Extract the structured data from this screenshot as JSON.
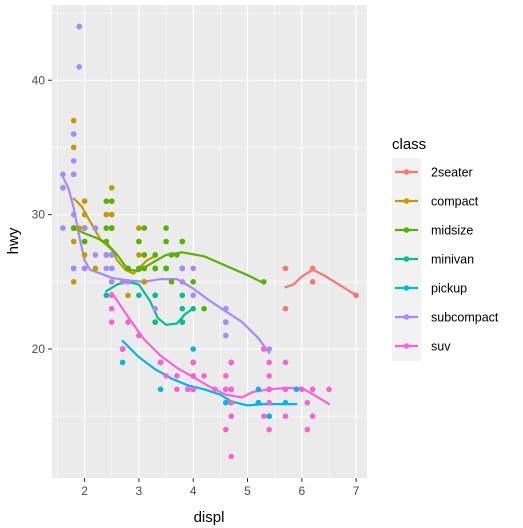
{
  "chart_data": {
    "type": "scatter",
    "xlabel": "displ",
    "ylabel": "hwy",
    "xlim": [
      1.4,
      7.2
    ],
    "ylim": [
      10.4,
      45.6
    ],
    "x_ticks": [
      2,
      3,
      4,
      5,
      6,
      7
    ],
    "y_ticks": [
      20,
      30,
      40
    ],
    "grid": true,
    "smooth": "loess",
    "legend": {
      "title": "class",
      "position": "right"
    },
    "series": [
      {
        "name": "2seater",
        "color": "#F8766D",
        "points": [
          [
            5.7,
            26
          ],
          [
            5.7,
            23
          ],
          [
            6.2,
            26
          ],
          [
            6.2,
            25
          ],
          [
            7.0,
            24
          ]
        ],
        "smooth": [
          [
            5.7,
            24.6
          ],
          [
            5.85,
            24.8
          ],
          [
            6.0,
            25.4
          ],
          [
            6.2,
            25.9
          ],
          [
            6.4,
            25.5
          ],
          [
            6.6,
            25.0
          ],
          [
            6.8,
            24.5
          ],
          [
            7.0,
            24.0
          ]
        ]
      },
      {
        "name": "compact",
        "color": "#C49A00",
        "points": [
          [
            1.8,
            29
          ],
          [
            1.8,
            29
          ],
          [
            2.0,
            31
          ],
          [
            2.0,
            30
          ],
          [
            2.8,
            26
          ],
          [
            2.8,
            26
          ],
          [
            3.1,
            27
          ],
          [
            1.8,
            26
          ],
          [
            1.8,
            25
          ],
          [
            2.0,
            28
          ],
          [
            2.0,
            27
          ],
          [
            2.8,
            25
          ],
          [
            2.8,
            25
          ],
          [
            3.1,
            25
          ],
          [
            3.1,
            25
          ],
          [
            2.2,
            29
          ],
          [
            2.2,
            26
          ],
          [
            2.4,
            27
          ],
          [
            2.4,
            30
          ],
          [
            3.0,
            26
          ],
          [
            3.0,
            29
          ],
          [
            3.3,
            26
          ],
          [
            1.9,
            44
          ],
          [
            2.0,
            29
          ],
          [
            2.0,
            26
          ],
          [
            2.5,
            32
          ],
          [
            2.5,
            31
          ],
          [
            1.8,
            37
          ],
          [
            1.8,
            35
          ],
          [
            1.8,
            33
          ],
          [
            1.8,
            28
          ],
          [
            1.9,
            29
          ],
          [
            2.0,
            29
          ],
          [
            2.0,
            28
          ],
          [
            2.5,
            29
          ],
          [
            2.8,
            24
          ],
          [
            2.5,
            30
          ],
          [
            2.0,
            31
          ],
          [
            3.0,
            28
          ],
          [
            3.0,
            27
          ]
        ],
        "smooth": [
          [
            1.8,
            31.2
          ],
          [
            1.95,
            30.6
          ],
          [
            2.1,
            29.5
          ],
          [
            2.3,
            28.1
          ],
          [
            2.5,
            27.4
          ],
          [
            2.6,
            26.6
          ],
          [
            2.75,
            25.9
          ],
          [
            2.9,
            25.6
          ],
          [
            3.0,
            26.0
          ],
          [
            3.15,
            26.6
          ],
          [
            3.3,
            26.9
          ]
        ]
      },
      {
        "name": "midsize",
        "color": "#53B400",
        "points": [
          [
            2.4,
            29
          ],
          [
            2.4,
            27
          ],
          [
            3.1,
            26
          ],
          [
            3.5,
            26
          ],
          [
            3.6,
            25
          ],
          [
            2.4,
            31
          ],
          [
            3.0,
            26
          ],
          [
            3.3,
            26
          ],
          [
            3.3,
            27
          ],
          [
            3.3,
            26
          ],
          [
            3.8,
            26
          ],
          [
            3.8,
            28
          ],
          [
            4.0,
            25
          ],
          [
            2.8,
            26
          ],
          [
            3.1,
            27
          ],
          [
            4.2,
            23
          ],
          [
            5.3,
            25
          ],
          [
            1.8,
            29
          ],
          [
            1.8,
            29
          ],
          [
            2.0,
            28
          ],
          [
            2.0,
            29
          ],
          [
            2.5,
            29
          ],
          [
            2.5,
            29
          ],
          [
            3.6,
            27
          ],
          [
            3.5,
            26
          ],
          [
            3.8,
            28
          ],
          [
            3.7,
            27
          ],
          [
            2.4,
            28
          ],
          [
            2.5,
            31
          ],
          [
            3.0,
            28
          ],
          [
            3.5,
            29
          ],
          [
            3.5,
            28
          ],
          [
            3.5,
            26
          ],
          [
            3.8,
            26
          ],
          [
            3.1,
            26
          ],
          [
            3.1,
            29
          ],
          [
            2.5,
            26
          ],
          [
            2.5,
            27
          ],
          [
            3.5,
            26
          ],
          [
            3.3,
            26
          ],
          [
            3.3,
            27
          ]
        ],
        "smooth": [
          [
            1.8,
            29.0
          ],
          [
            2.0,
            28.6
          ],
          [
            2.2,
            28.3
          ],
          [
            2.4,
            27.9
          ],
          [
            2.6,
            27.0
          ],
          [
            2.8,
            25.9
          ],
          [
            3.0,
            25.8
          ],
          [
            3.2,
            26.3
          ],
          [
            3.5,
            27.0
          ],
          [
            3.8,
            27.2
          ],
          [
            4.2,
            26.9
          ],
          [
            4.6,
            26.2
          ],
          [
            5.0,
            25.5
          ],
          [
            5.3,
            24.9
          ]
        ]
      },
      {
        "name": "minivan",
        "color": "#00C094",
        "points": [
          [
            2.4,
            24
          ],
          [
            3.0,
            24
          ],
          [
            3.3,
            22
          ],
          [
            3.3,
            22
          ],
          [
            3.3,
            24
          ],
          [
            3.3,
            24
          ],
          [
            3.8,
            24
          ],
          [
            3.8,
            22
          ],
          [
            3.8,
            22
          ],
          [
            3.8,
            23
          ],
          [
            4.0,
            23
          ]
        ],
        "smooth": [
          [
            2.4,
            24.3
          ],
          [
            2.6,
            24.8
          ],
          [
            2.8,
            25.0
          ],
          [
            3.0,
            24.8
          ],
          [
            3.2,
            23.6
          ],
          [
            3.35,
            22.3
          ],
          [
            3.5,
            21.8
          ],
          [
            3.7,
            21.9
          ],
          [
            3.85,
            22.6
          ],
          [
            4.0,
            23.0
          ]
        ]
      },
      {
        "name": "pickup",
        "color": "#00B6EB",
        "points": [
          [
            2.7,
            20
          ],
          [
            2.7,
            20
          ],
          [
            3.4,
            17
          ],
          [
            3.4,
            19
          ],
          [
            3.9,
            17
          ],
          [
            3.9,
            17
          ],
          [
            4.7,
            15
          ],
          [
            4.7,
            17
          ],
          [
            4.7,
            17
          ],
          [
            4.7,
            16
          ],
          [
            5.2,
            16
          ],
          [
            5.2,
            16
          ],
          [
            5.7,
            17
          ],
          [
            5.9,
            17
          ],
          [
            4.7,
            17
          ],
          [
            4.7,
            19
          ],
          [
            5.2,
            17
          ],
          [
            5.7,
            16
          ],
          [
            5.4,
            15
          ],
          [
            5.4,
            17
          ],
          [
            5.4,
            17
          ],
          [
            5.4,
            15
          ],
          [
            2.7,
            19
          ],
          [
            2.7,
            20
          ],
          [
            3.4,
            19
          ],
          [
            3.4,
            19
          ],
          [
            4.0,
            18
          ],
          [
            4.0,
            20
          ],
          [
            4.0,
            17
          ],
          [
            4.6,
            17
          ],
          [
            4.0,
            19
          ],
          [
            4.0,
            17
          ],
          [
            4.0,
            17
          ],
          [
            4.6,
            16
          ]
        ],
        "smooth": [
          [
            2.7,
            20.6
          ],
          [
            3.0,
            19.4
          ],
          [
            3.3,
            18.5
          ],
          [
            3.6,
            17.8
          ],
          [
            3.9,
            17.3
          ],
          [
            4.2,
            17.0
          ],
          [
            4.5,
            16.6
          ],
          [
            4.7,
            16.1
          ],
          [
            5.0,
            15.8
          ],
          [
            5.3,
            15.9
          ],
          [
            5.6,
            15.9
          ],
          [
            5.9,
            15.9
          ]
        ]
      },
      {
        "name": "subcompact",
        "color": "#A58AFF",
        "points": [
          [
            3.8,
            26
          ],
          [
            3.8,
            25
          ],
          [
            4.0,
            26
          ],
          [
            4.0,
            24
          ],
          [
            4.6,
            21
          ],
          [
            4.6,
            22
          ],
          [
            4.6,
            23
          ],
          [
            4.6,
            22
          ],
          [
            5.4,
            20
          ],
          [
            1.6,
            33
          ],
          [
            1.6,
            32
          ],
          [
            1.6,
            32
          ],
          [
            1.6,
            29
          ],
          [
            1.6,
            32
          ],
          [
            1.8,
            34
          ],
          [
            1.8,
            36
          ],
          [
            1.8,
            36
          ],
          [
            2.0,
            29
          ],
          [
            2.4,
            26
          ],
          [
            2.4,
            27
          ],
          [
            2.5,
            26
          ],
          [
            2.5,
            25
          ],
          [
            1.9,
            41
          ],
          [
            1.9,
            44
          ],
          [
            2.0,
            29
          ],
          [
            2.0,
            26
          ],
          [
            2.2,
            27
          ],
          [
            2.2,
            29
          ],
          [
            2.5,
            25
          ],
          [
            2.5,
            24
          ],
          [
            2.5,
            27
          ],
          [
            3.3,
            23
          ],
          [
            2.0,
            26
          ],
          [
            2.0,
            29
          ],
          [
            2.7,
            25
          ],
          [
            2.7,
            25
          ],
          [
            2.0,
            26
          ],
          [
            2.8,
            25
          ],
          [
            1.8,
            26
          ],
          [
            1.8,
            26
          ],
          [
            1.8,
            33
          ],
          [
            1.8,
            30
          ],
          [
            2.5,
            27
          ]
        ],
        "smooth": [
          [
            1.6,
            32.8
          ],
          [
            1.7,
            32.0
          ],
          [
            1.8,
            30.5
          ],
          [
            1.9,
            28.4
          ],
          [
            2.0,
            26.6
          ],
          [
            2.1,
            25.9
          ],
          [
            2.3,
            25.6
          ],
          [
            2.5,
            25.3
          ],
          [
            2.8,
            25.1
          ],
          [
            3.1,
            25.0
          ],
          [
            3.4,
            25.2
          ],
          [
            3.7,
            25.2
          ],
          [
            4.0,
            24.5
          ],
          [
            4.3,
            23.6
          ],
          [
            4.6,
            22.8
          ],
          [
            4.9,
            22.0
          ],
          [
            5.2,
            20.8
          ],
          [
            5.4,
            19.7
          ]
        ]
      },
      {
        "name": "suv",
        "color": "#FB61D7",
        "points": [
          [
            5.3,
            20
          ],
          [
            5.3,
            15
          ],
          [
            5.3,
            20
          ],
          [
            5.7,
            17
          ],
          [
            6.0,
            17
          ],
          [
            5.7,
            17
          ],
          [
            5.7,
            17
          ],
          [
            6.2,
            17
          ],
          [
            6.2,
            15
          ],
          [
            6.5,
            17
          ],
          [
            4.7,
            12
          ],
          [
            4.7,
            17
          ],
          [
            4.7,
            17
          ],
          [
            4.7,
            17
          ],
          [
            5.7,
            19
          ],
          [
            6.1,
            14
          ],
          [
            4.0,
            17
          ],
          [
            4.2,
            18
          ],
          [
            4.4,
            17
          ],
          [
            4.6,
            14
          ],
          [
            5.4,
            17
          ],
          [
            5.4,
            18
          ],
          [
            5.4,
            14
          ],
          [
            4.0,
            19
          ],
          [
            4.6,
            18
          ],
          [
            5.4,
            19
          ],
          [
            5.4,
            17
          ],
          [
            2.5,
            23
          ],
          [
            2.5,
            24
          ],
          [
            2.5,
            22
          ],
          [
            2.8,
            22
          ],
          [
            2.7,
            20
          ],
          [
            3.4,
            19
          ],
          [
            3.5,
            18
          ],
          [
            4.0,
            19
          ],
          [
            4.0,
            18
          ],
          [
            4.0,
            19
          ],
          [
            4.0,
            17
          ],
          [
            4.6,
            17
          ],
          [
            4.6,
            17
          ],
          [
            4.7,
            19
          ],
          [
            4.7,
            19
          ],
          [
            5.7,
            15
          ],
          [
            5.4,
            16
          ],
          [
            5.4,
            17
          ],
          [
            3.0,
            21
          ],
          [
            3.7,
            18
          ],
          [
            3.7,
            17
          ],
          [
            3.9,
            17
          ],
          [
            4.7,
            16
          ],
          [
            4.7,
            15
          ],
          [
            6.1,
            16
          ]
        ],
        "smooth": [
          [
            2.5,
            24.2
          ],
          [
            2.8,
            22.4
          ],
          [
            3.1,
            20.7
          ],
          [
            3.4,
            19.5
          ],
          [
            3.7,
            18.6
          ],
          [
            4.0,
            17.9
          ],
          [
            4.3,
            17.2
          ],
          [
            4.6,
            16.6
          ],
          [
            4.9,
            16.4
          ],
          [
            5.1,
            16.8
          ],
          [
            5.4,
            17.0
          ],
          [
            5.7,
            17.1
          ],
          [
            6.0,
            17.1
          ],
          [
            6.3,
            16.4
          ],
          [
            6.5,
            15.9
          ]
        ]
      }
    ]
  }
}
